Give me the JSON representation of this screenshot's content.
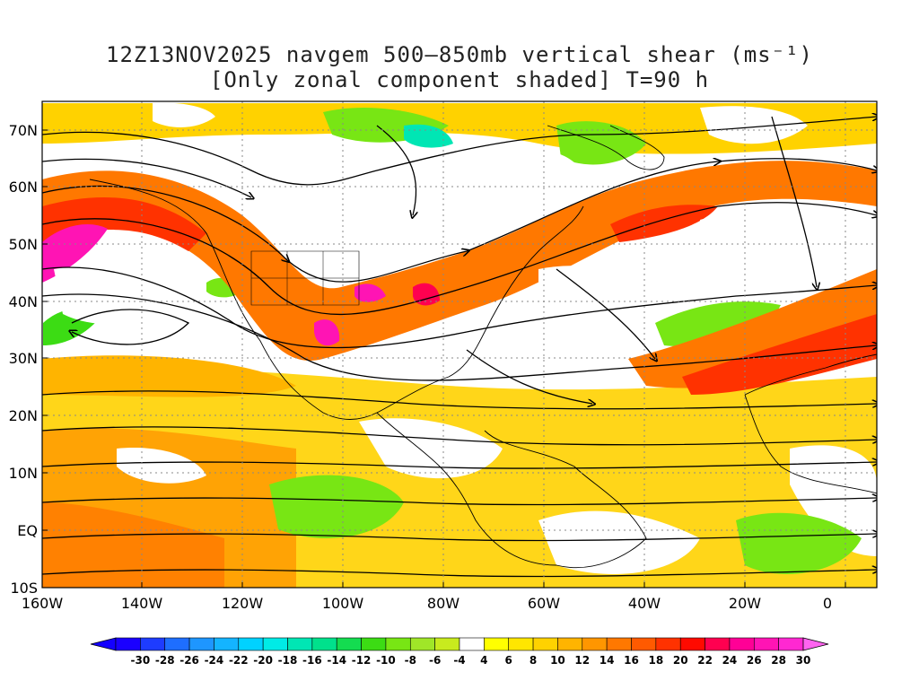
{
  "title": {
    "line1": "12Z13NOV2025 navgem 500–850mb vertical shear (ms⁻¹)",
    "line2": "[Only zonal component shaded] T=90 h"
  },
  "lat_labels": [
    "70N",
    "60N",
    "50N",
    "40N",
    "30N",
    "20N",
    "10N",
    "EQ",
    "10S"
  ],
  "lon_labels": [
    "160W",
    "140W",
    "120W",
    "100W",
    "80W",
    "60W",
    "40W",
    "20W",
    "0"
  ],
  "colorbar": {
    "labels": [
      "-30",
      "-28",
      "-26",
      "-24",
      "-22",
      "-20",
      "-18",
      "-16",
      "-14",
      "-12",
      "-10",
      "-8",
      "-6",
      "-4",
      "4",
      "6",
      "8",
      "10",
      "12",
      "14",
      "16",
      "18",
      "20",
      "22",
      "24",
      "26",
      "28",
      "30"
    ],
    "colors": [
      "#1a00ff",
      "#1e3cff",
      "#1e6eff",
      "#1e96ff",
      "#14b4ff",
      "#00d2ff",
      "#00ebe6",
      "#00e6b4",
      "#00e18c",
      "#14dc50",
      "#3cdc14",
      "#78e614",
      "#a0e628",
      "#c8eb1e",
      "#ffffff",
      "#ffff00",
      "#ffe600",
      "#ffd200",
      "#ffb400",
      "#ff9600",
      "#ff7800",
      "#ff5a00",
      "#ff3200",
      "#ff0a00",
      "#ff0050",
      "#ff0096",
      "#ff14b4",
      "#ff28d2"
    ],
    "min_arrow_color": "#1400ff",
    "max_arrow_color": "#ff64f0"
  }
}
